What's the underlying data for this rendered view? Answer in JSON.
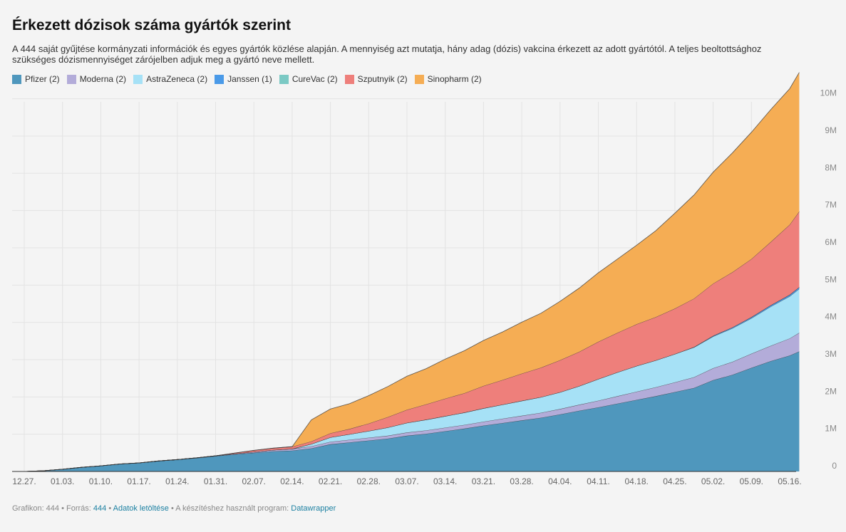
{
  "title": "Érkezett dózisok száma gyártók szerint",
  "description_line1": "A 444 saját gyűjtése kormányzati információk és egyes gyártók közlése alapján. A mennyiség azt mutatja, hány adag (dózis) vakcina érkezett az adott gyártótól. A teljes beoltottsághoz",
  "description_line2": "szükséges dózismennyiséget zárójelben adjuk meg a gyártó neve mellett.",
  "legend": [
    {
      "label": "Pfizer (2)",
      "color": "#4f97bd"
    },
    {
      "label": "Moderna (2)",
      "color": "#b3acd9"
    },
    {
      "label": "AstraZeneca (2)",
      "color": "#a6e1f6"
    },
    {
      "label": "Janssen (1)",
      "color": "#4a9ae8"
    },
    {
      "label": "CureVac (2)",
      "color": "#7bc9c4"
    },
    {
      "label": "Szputnyik (2)",
      "color": "#ee7f7b"
    },
    {
      "label": "Sinopharm (2)",
      "color": "#f5ad54"
    }
  ],
  "footer": {
    "prefix": "Grafikon: 444 • Forrás: ",
    "source": "444",
    "sep": " • ",
    "download": "Adatok letöltése",
    "tool_prefix": " • A készítéshez használt program: ",
    "tool": "Datawrapper"
  },
  "chart_data": {
    "type": "area",
    "stacked": true,
    "x_unit": "week",
    "x_start": "12.27.",
    "x_tick_labels": [
      "12.27.",
      "01.03.",
      "01.10.",
      "01.17.",
      "01.24.",
      "01.31.",
      "02.07.",
      "02.14.",
      "02.21.",
      "02.28.",
      "03.07.",
      "03.14.",
      "03.21.",
      "03.28.",
      "04.04.",
      "04.11.",
      "04.18.",
      "04.25.",
      "05.02.",
      "05.09.",
      "05.16."
    ],
    "y_tick_labels": [
      "0",
      "1M",
      "2M",
      "3M",
      "4M",
      "5M",
      "6M",
      "7M",
      "8M",
      "9M",
      "10M"
    ],
    "ylim": [
      0,
      10700000
    ],
    "grid": true,
    "x": [
      0,
      0.5,
      1,
      1.5,
      2,
      2.5,
      3,
      3.5,
      4,
      4.5,
      5,
      5.5,
      6,
      6.5,
      7,
      7.5,
      8,
      8.5,
      9,
      9.5,
      10,
      10.5,
      11,
      11.5,
      12,
      12.5,
      13,
      13.5,
      14,
      14.5,
      15,
      15.5,
      16,
      16.5,
      17,
      17.5,
      18,
      18.5,
      19,
      19.5,
      20,
      20.25
    ],
    "series": [
      {
        "name": "Pfizer (2)",
        "color": "#4f97bd",
        "values": [
          0,
          20000,
          60000,
          110000,
          150000,
          200000,
          230000,
          280000,
          320000,
          360000,
          410000,
          460000,
          500000,
          540000,
          560000,
          620000,
          730000,
          780000,
          830000,
          880000,
          960000,
          1010000,
          1080000,
          1150000,
          1230000,
          1300000,
          1370000,
          1440000,
          1530000,
          1630000,
          1720000,
          1820000,
          1920000,
          2020000,
          2130000,
          2240000,
          2450000,
          2590000,
          2780000,
          2960000,
          3110000,
          3220000
        ]
      },
      {
        "name": "Moderna (2)",
        "color": "#b3acd9",
        "values": [
          0,
          0,
          0,
          0,
          0,
          0,
          0,
          0,
          0,
          5000,
          10000,
          15000,
          25000,
          35000,
          45000,
          55000,
          65000,
          70000,
          75000,
          80000,
          85000,
          90000,
          95000,
          100000,
          105000,
          115000,
          125000,
          135000,
          145000,
          160000,
          180000,
          200000,
          220000,
          240000,
          260000,
          290000,
          320000,
          350000,
          380000,
          410000,
          460000,
          500000
        ]
      },
      {
        "name": "AstraZeneca (2)",
        "color": "#a6e1f6",
        "values": [
          0,
          0,
          0,
          0,
          0,
          0,
          0,
          0,
          0,
          0,
          0,
          0,
          0,
          0,
          0,
          60000,
          120000,
          150000,
          180000,
          220000,
          260000,
          290000,
          310000,
          330000,
          360000,
          380000,
          400000,
          420000,
          450000,
          500000,
          580000,
          640000,
          690000,
          720000,
          760000,
          800000,
          850000,
          900000,
          950000,
          1050000,
          1130000,
          1180000
        ]
      },
      {
        "name": "Janssen (1)",
        "color": "#4a9ae8",
        "values": [
          0,
          0,
          0,
          0,
          0,
          0,
          0,
          0,
          0,
          0,
          0,
          0,
          0,
          0,
          0,
          0,
          0,
          0,
          0,
          0,
          0,
          0,
          0,
          0,
          0,
          0,
          0,
          0,
          0,
          0,
          0,
          0,
          0,
          0,
          0,
          10000,
          20000,
          25000,
          30000,
          35000,
          40000,
          45000
        ]
      },
      {
        "name": "CureVac (2)",
        "color": "#7bc9c4",
        "values": [
          0,
          0,
          0,
          0,
          0,
          0,
          0,
          0,
          0,
          0,
          0,
          0,
          0,
          0,
          0,
          0,
          0,
          0,
          0,
          0,
          0,
          0,
          0,
          0,
          0,
          0,
          0,
          0,
          0,
          0,
          0,
          0,
          0,
          0,
          0,
          0,
          0,
          0,
          0,
          0,
          0,
          0
        ]
      },
      {
        "name": "Szputnyik (2)",
        "color": "#ee7f7b",
        "values": [
          0,
          0,
          0,
          0,
          0,
          0,
          0,
          0,
          0,
          0,
          0,
          20000,
          40000,
          50000,
          60000,
          70000,
          110000,
          140000,
          200000,
          280000,
          350000,
          410000,
          470000,
          520000,
          600000,
          660000,
          730000,
          790000,
          860000,
          920000,
          1000000,
          1060000,
          1120000,
          1160000,
          1220000,
          1300000,
          1400000,
          1480000,
          1560000,
          1700000,
          1880000,
          2030000
        ]
      },
      {
        "name": "Sinopharm (2)",
        "color": "#f5ad54",
        "values": [
          0,
          0,
          0,
          0,
          0,
          0,
          0,
          0,
          0,
          0,
          0,
          0,
          0,
          0,
          0,
          580000,
          650000,
          680000,
          750000,
          820000,
          900000,
          960000,
          1060000,
          1140000,
          1220000,
          1290000,
          1380000,
          1460000,
          1580000,
          1710000,
          1850000,
          1980000,
          2120000,
          2320000,
          2560000,
          2780000,
          2990000,
          3200000,
          3400000,
          3550000,
          3650000,
          3730000
        ]
      }
    ]
  }
}
